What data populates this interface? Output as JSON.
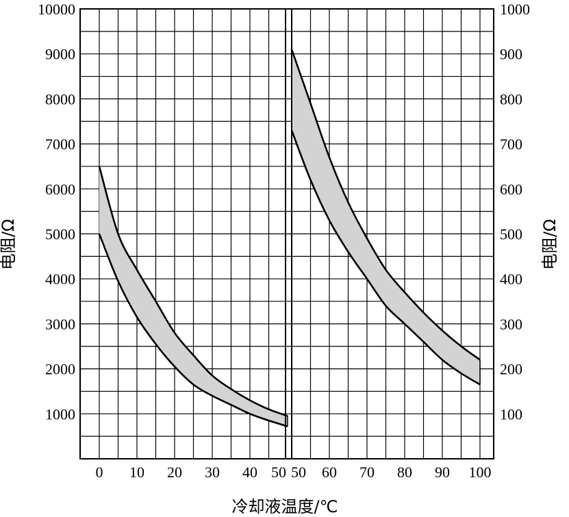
{
  "chart_data": {
    "type": "area",
    "title": "",
    "xlabel": "冷却液温度/℃",
    "ylabel_left": "电阻/Ω",
    "ylabel_right": "电阻/Ω",
    "grid": true,
    "legend": "none",
    "fill_color": "#d3d3d3",
    "line_color": "#000000",
    "x_ticks": [
      "0",
      "10",
      "20",
      "30",
      "40",
      "50",
      "50",
      "60",
      "70",
      "80",
      "90",
      "100"
    ],
    "y_left_ticks": [
      "1000",
      "2000",
      "3000",
      "4000",
      "5000",
      "6000",
      "7000",
      "8000",
      "9000",
      "10000"
    ],
    "y_right_ticks": [
      "100",
      "200",
      "300",
      "400",
      "500",
      "600",
      "700",
      "800",
      "900",
      "1000"
    ],
    "panels": [
      {
        "name": "0-50",
        "xlim": [
          -5,
          50
        ],
        "ylim": [
          0,
          10000
        ],
        "x": [
          0,
          5,
          10,
          15,
          20,
          25,
          30,
          35,
          40,
          45,
          50
        ],
        "upper": [
          6500,
          5000,
          4200,
          3500,
          2800,
          2300,
          1850,
          1550,
          1300,
          1100,
          950
        ],
        "lower": [
          5000,
          3950,
          3150,
          2550,
          2050,
          1650,
          1400,
          1200,
          1000,
          850,
          720
        ]
      },
      {
        "name": "50-100",
        "xlim": [
          50,
          105
        ],
        "ylim": [
          0,
          1000
        ],
        "x": [
          50,
          55,
          60,
          65,
          70,
          75,
          80,
          85,
          90,
          95,
          100
        ],
        "upper": [
          910,
          790,
          670,
          570,
          490,
          420,
          370,
          325,
          285,
          250,
          220
        ],
        "lower": [
          730,
          620,
          530,
          460,
          400,
          340,
          300,
          260,
          220,
          190,
          165
        ]
      }
    ]
  }
}
